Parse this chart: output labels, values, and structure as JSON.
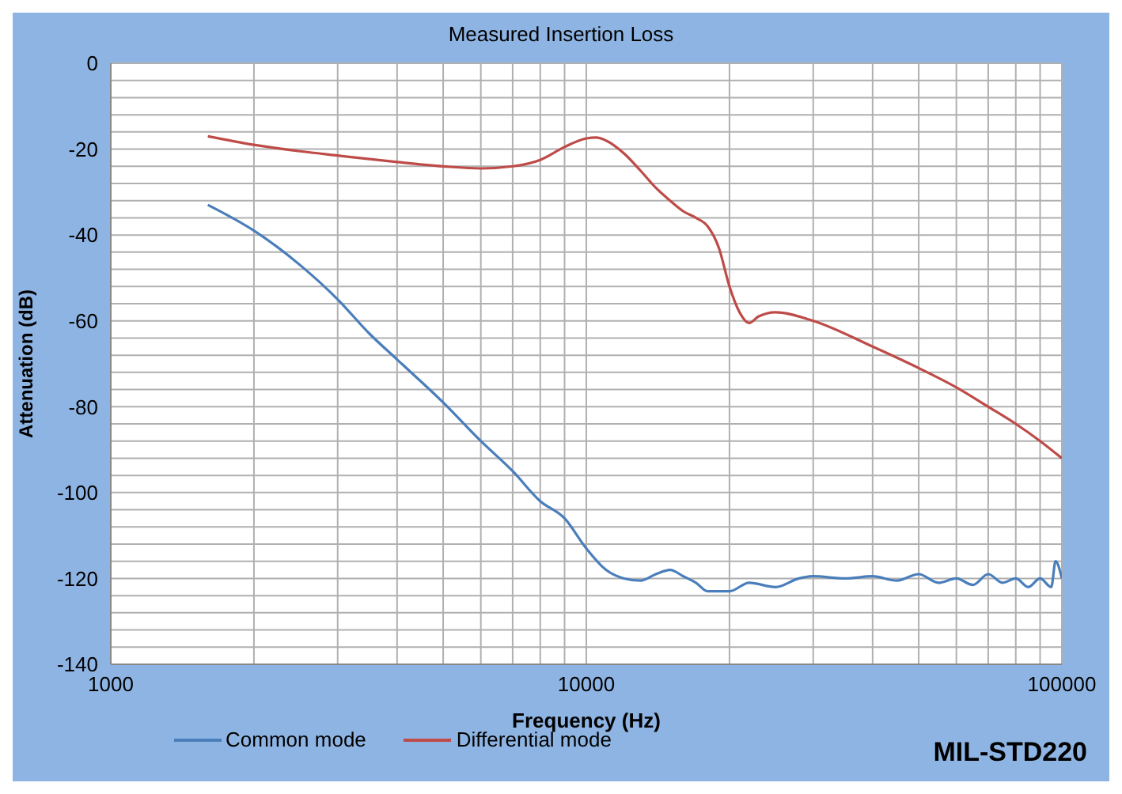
{
  "chart_data": {
    "type": "line",
    "title": "Measured Insertion Loss",
    "xlabel": "Frequency (Hz)",
    "ylabel": "Attenuation (dB)",
    "log": "x",
    "grid": true,
    "legend": "bottom",
    "marker": "none",
    "line_style": "solid",
    "xlim": [
      1000,
      100000
    ],
    "xticks": [
      1000,
      {
        "value": 2000,
        "label": null
      },
      {
        "value": 3000,
        "label": null
      },
      {
        "value": 4000,
        "label": null
      },
      {
        "value": 5000,
        "label": null
      },
      {
        "value": 6000,
        "label": null
      },
      {
        "value": 7000,
        "label": null
      },
      {
        "value": 8000,
        "label": null
      },
      {
        "value": 9000,
        "label": null
      },
      10000,
      {
        "value": 20000,
        "label": null
      },
      {
        "value": 30000,
        "label": null
      },
      {
        "value": 40000,
        "label": null
      },
      {
        "value": 50000,
        "label": null
      },
      {
        "value": 60000,
        "label": null
      },
      {
        "value": 70000,
        "label": null
      },
      {
        "value": 80000,
        "label": null
      },
      {
        "value": 90000,
        "label": null
      },
      100000
    ],
    "ylim": [
      -140,
      0
    ],
    "yticks": [
      -140,
      {
        "value": -136,
        "label": null
      },
      {
        "value": -132,
        "label": null
      },
      {
        "value": -128,
        "label": null
      },
      {
        "value": -124,
        "label": null
      },
      -120,
      {
        "value": -116,
        "label": null
      },
      {
        "value": -112,
        "label": null
      },
      {
        "value": -108,
        "label": null
      },
      {
        "value": -104,
        "label": null
      },
      -100,
      {
        "value": -96,
        "label": null
      },
      {
        "value": -92,
        "label": null
      },
      {
        "value": -88,
        "label": null
      },
      {
        "value": -84,
        "label": null
      },
      -80,
      {
        "value": -76,
        "label": null
      },
      {
        "value": -72,
        "label": null
      },
      {
        "value": -68,
        "label": null
      },
      {
        "value": -64,
        "label": null
      },
      -60,
      {
        "value": -56,
        "label": null
      },
      {
        "value": -52,
        "label": null
      },
      {
        "value": -48,
        "label": null
      },
      {
        "value": -44,
        "label": null
      },
      -40,
      {
        "value": -36,
        "label": null
      },
      {
        "value": -32,
        "label": null
      },
      {
        "value": -28,
        "label": null
      },
      {
        "value": -24,
        "label": null
      },
      -20,
      {
        "value": -16,
        "label": null
      },
      {
        "value": -12,
        "label": null
      },
      {
        "value": -8,
        "label": null
      },
      {
        "value": -4,
        "label": null
      },
      0
    ],
    "annotations": [
      "MIL-STD220"
    ],
    "series": [
      {
        "name": "Common mode",
        "color": "#4a7ebb",
        "x": [
          1600,
          2000,
          2500,
          3000,
          3500,
          4000,
          5000,
          6000,
          7000,
          8000,
          9000,
          10000,
          11000,
          12000,
          13000,
          14000,
          15000,
          16000,
          17000,
          18000,
          20000,
          22000,
          25000,
          28000,
          30000,
          35000,
          40000,
          45000,
          50000,
          55000,
          60000,
          65000,
          70000,
          75000,
          80000,
          85000,
          90000,
          95000,
          97000,
          100000
        ],
        "values": [
          -33,
          -39,
          -47,
          -55,
          -63,
          -69,
          -79,
          -88,
          -95,
          -102,
          -106,
          -113,
          -118,
          -120,
          -120.5,
          -119,
          -118,
          -119.5,
          -121,
          -123,
          -123,
          -121,
          -122,
          -120,
          -119.5,
          -120,
          -119.5,
          -120.5,
          -119,
          -121,
          -120,
          -121.5,
          -119,
          -121,
          -120,
          -122,
          -120,
          -122,
          -116,
          -120
        ]
      },
      {
        "name": "Differential mode",
        "color": "#be4b48",
        "x": [
          1600,
          2000,
          2500,
          3000,
          4000,
          5000,
          6000,
          7000,
          8000,
          9000,
          10000,
          10500,
          11000,
          12000,
          13000,
          14000,
          15000,
          16000,
          17000,
          18000,
          19000,
          20000,
          21000,
          22000,
          23000,
          25000,
          30000,
          40000,
          50000,
          60000,
          70000,
          80000,
          90000,
          100000
        ],
        "values": [
          -17,
          -19,
          -20.5,
          -21.5,
          -23,
          -24,
          -24.5,
          -24,
          -22.5,
          -19.5,
          -17.5,
          -17.3,
          -18,
          -21,
          -25,
          -29,
          -32,
          -34.5,
          -36,
          -38,
          -43,
          -52,
          -58,
          -60.5,
          -59,
          -58,
          -60,
          -66,
          -71,
          -75.5,
          -80,
          -84,
          -88,
          -92
        ]
      }
    ]
  }
}
